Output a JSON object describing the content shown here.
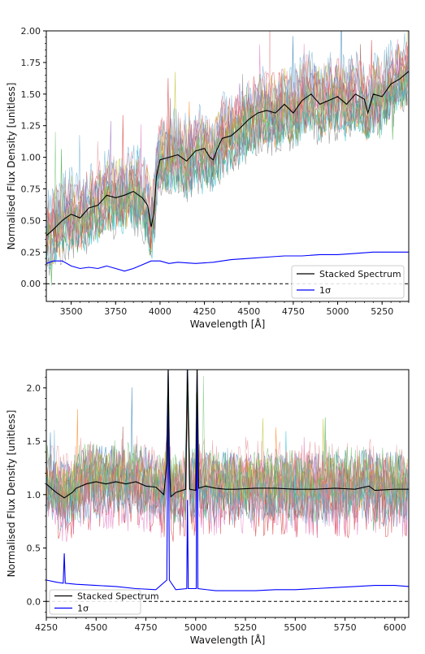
{
  "chart_data": [
    {
      "type": "line",
      "xlabel": "Wavelength [Å]",
      "ylabel": "Normalised Flux Density [unitless]",
      "xlim": [
        3360,
        5400
      ],
      "ylim": [
        -0.14,
        2.0
      ],
      "xticks": [
        3500,
        3750,
        4000,
        4250,
        4500,
        4750,
        5000,
        5250
      ],
      "xtick_labels": [
        "3500",
        "3750",
        "4000",
        "4250",
        "4500",
        "4750",
        "5000",
        "5250"
      ],
      "yticks": [
        0.0,
        0.25,
        0.5,
        0.75,
        1.0,
        1.25,
        1.5,
        1.75,
        2.0
      ],
      "ytick_labels": [
        "0.00",
        "0.25",
        "0.50",
        "0.75",
        "1.00",
        "1.25",
        "1.50",
        "1.75",
        "2.00"
      ],
      "grid": false,
      "legend_position": "lower-right",
      "reference_line": {
        "y": 0.0,
        "style": "dashed",
        "color": "#000000"
      },
      "individual_spectra": {
        "count": 14,
        "colors": [
          "#1f77b4",
          "#ff7f0e",
          "#2ca02c",
          "#d62728",
          "#9467bd",
          "#8c564b",
          "#e377c2",
          "#7f7f7f",
          "#bcbd22",
          "#17becf",
          "#d6616b",
          "#e7969c",
          "#6baed6",
          "#74c476"
        ]
      },
      "series": [
        {
          "name": "Stacked Spectrum",
          "color": "#000000",
          "x": [
            3360,
            3400,
            3450,
            3500,
            3550,
            3600,
            3650,
            3700,
            3750,
            3800,
            3850,
            3900,
            3930,
            3950,
            3965,
            3980,
            4000,
            4050,
            4100,
            4150,
            4200,
            4250,
            4280,
            4300,
            4320,
            4350,
            4400,
            4450,
            4500,
            4550,
            4600,
            4650,
            4700,
            4750,
            4800,
            4850,
            4900,
            4950,
            5000,
            5050,
            5100,
            5150,
            5170,
            5200,
            5250,
            5300,
            5350,
            5400
          ],
          "y": [
            0.38,
            0.43,
            0.5,
            0.55,
            0.52,
            0.6,
            0.62,
            0.7,
            0.68,
            0.7,
            0.73,
            0.68,
            0.62,
            0.45,
            0.55,
            0.85,
            0.98,
            1.0,
            1.02,
            0.97,
            1.05,
            1.07,
            1.0,
            0.98,
            1.06,
            1.15,
            1.17,
            1.23,
            1.3,
            1.35,
            1.37,
            1.35,
            1.42,
            1.35,
            1.45,
            1.5,
            1.42,
            1.45,
            1.48,
            1.42,
            1.5,
            1.46,
            1.35,
            1.5,
            1.48,
            1.58,
            1.62,
            1.68
          ]
        },
        {
          "name": "1σ",
          "color": "#0000ff",
          "x": [
            3360,
            3400,
            3450,
            3500,
            3550,
            3600,
            3650,
            3700,
            3750,
            3800,
            3850,
            3900,
            3950,
            4000,
            4050,
            4100,
            4200,
            4300,
            4400,
            4500,
            4600,
            4700,
            4800,
            4900,
            5000,
            5100,
            5200,
            5300,
            5400
          ],
          "y": [
            0.16,
            0.18,
            0.18,
            0.14,
            0.12,
            0.13,
            0.12,
            0.14,
            0.12,
            0.1,
            0.12,
            0.15,
            0.18,
            0.18,
            0.16,
            0.17,
            0.16,
            0.17,
            0.19,
            0.2,
            0.21,
            0.22,
            0.22,
            0.23,
            0.23,
            0.24,
            0.25,
            0.25,
            0.25
          ]
        }
      ]
    },
    {
      "type": "line",
      "xlabel": "Wavelength [Å]",
      "ylabel": "Normalised Flux Density [unitless]",
      "xlim": [
        4250,
        6070
      ],
      "ylim": [
        -0.15,
        2.17
      ],
      "xticks": [
        4250,
        4500,
        4750,
        5000,
        5250,
        5500,
        5750,
        6000
      ],
      "xtick_labels": [
        "4250",
        "4500",
        "4750",
        "5000",
        "5250",
        "5500",
        "5750",
        "6000"
      ],
      "yticks": [
        0.0,
        0.5,
        1.0,
        1.5,
        2.0
      ],
      "ytick_labels": [
        "0.0",
        "0.5",
        "1.0",
        "1.5",
        "2.0"
      ],
      "grid": false,
      "legend_position": "lower-left",
      "reference_line": {
        "y": 0.0,
        "style": "dashed",
        "color": "#000000"
      },
      "individual_spectra": {
        "count": 14,
        "colors": [
          "#1f77b4",
          "#ff7f0e",
          "#2ca02c",
          "#d62728",
          "#9467bd",
          "#8c564b",
          "#e377c2",
          "#7f7f7f",
          "#bcbd22",
          "#17becf",
          "#d6616b",
          "#e7969c",
          "#6baed6",
          "#74c476"
        ]
      },
      "series": [
        {
          "name": "Stacked Spectrum",
          "color": "#000000",
          "x": [
            4250,
            4280,
            4300,
            4340,
            4380,
            4400,
            4450,
            4500,
            4550,
            4600,
            4650,
            4700,
            4750,
            4800,
            4840,
            4855,
            4862,
            4868,
            4875,
            4900,
            4950,
            4959,
            4970,
            5000,
            5007,
            5015,
            5050,
            5100,
            5150,
            5200,
            5300,
            5400,
            5500,
            5600,
            5700,
            5800,
            5870,
            5900,
            6000,
            6070
          ],
          "y": [
            1.1,
            1.05,
            1.02,
            0.97,
            1.02,
            1.06,
            1.1,
            1.12,
            1.1,
            1.12,
            1.1,
            1.12,
            1.08,
            1.07,
            1.0,
            1.3,
            2.17,
            1.3,
            0.98,
            1.02,
            1.05,
            2.17,
            1.05,
            1.04,
            2.17,
            1.06,
            1.08,
            1.06,
            1.05,
            1.05,
            1.06,
            1.06,
            1.05,
            1.05,
            1.06,
            1.05,
            1.08,
            1.04,
            1.05,
            1.05
          ]
        },
        {
          "name": "1σ",
          "color": "#0000ff",
          "x": [
            4250,
            4300,
            4335,
            4340,
            4345,
            4400,
            4500,
            4600,
            4700,
            4800,
            4855,
            4862,
            4868,
            4900,
            4955,
            4959,
            4963,
            5003,
            5007,
            5011,
            5100,
            5200,
            5300,
            5400,
            5500,
            5600,
            5700,
            5800,
            5900,
            6000,
            6070
          ],
          "y": [
            0.2,
            0.18,
            0.17,
            0.45,
            0.17,
            0.16,
            0.15,
            0.14,
            0.12,
            0.11,
            0.2,
            2.17,
            0.2,
            0.11,
            0.12,
            0.95,
            0.12,
            0.12,
            2.17,
            0.12,
            0.1,
            0.1,
            0.1,
            0.11,
            0.11,
            0.12,
            0.13,
            0.14,
            0.15,
            0.15,
            0.14
          ]
        }
      ]
    }
  ]
}
